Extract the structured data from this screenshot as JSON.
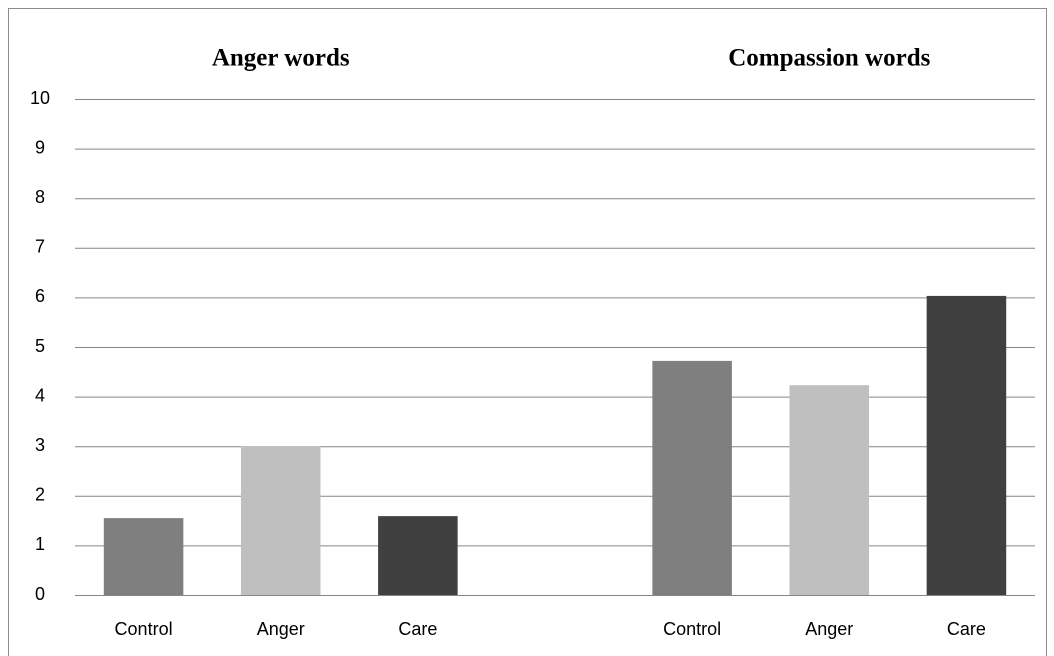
{
  "chart_data": {
    "type": "bar",
    "annotations": [
      "Anger words",
      "Compassion words"
    ],
    "categories": [
      "Control",
      "Anger",
      "Care",
      null,
      "Control",
      "Anger",
      "Care"
    ],
    "values": [
      1.55,
      3.0,
      1.59,
      null,
      4.72,
      4.23,
      6.03
    ],
    "colors": [
      "#7f7f7f",
      "#bfbfbf",
      "#404040",
      null,
      "#7f7f7f",
      "#bfbfbf",
      "#404040"
    ],
    "ylim": [
      0,
      10
    ],
    "yticks": [
      0,
      1,
      2,
      3,
      4,
      5,
      6,
      7,
      8,
      9,
      10
    ],
    "grid": true
  }
}
